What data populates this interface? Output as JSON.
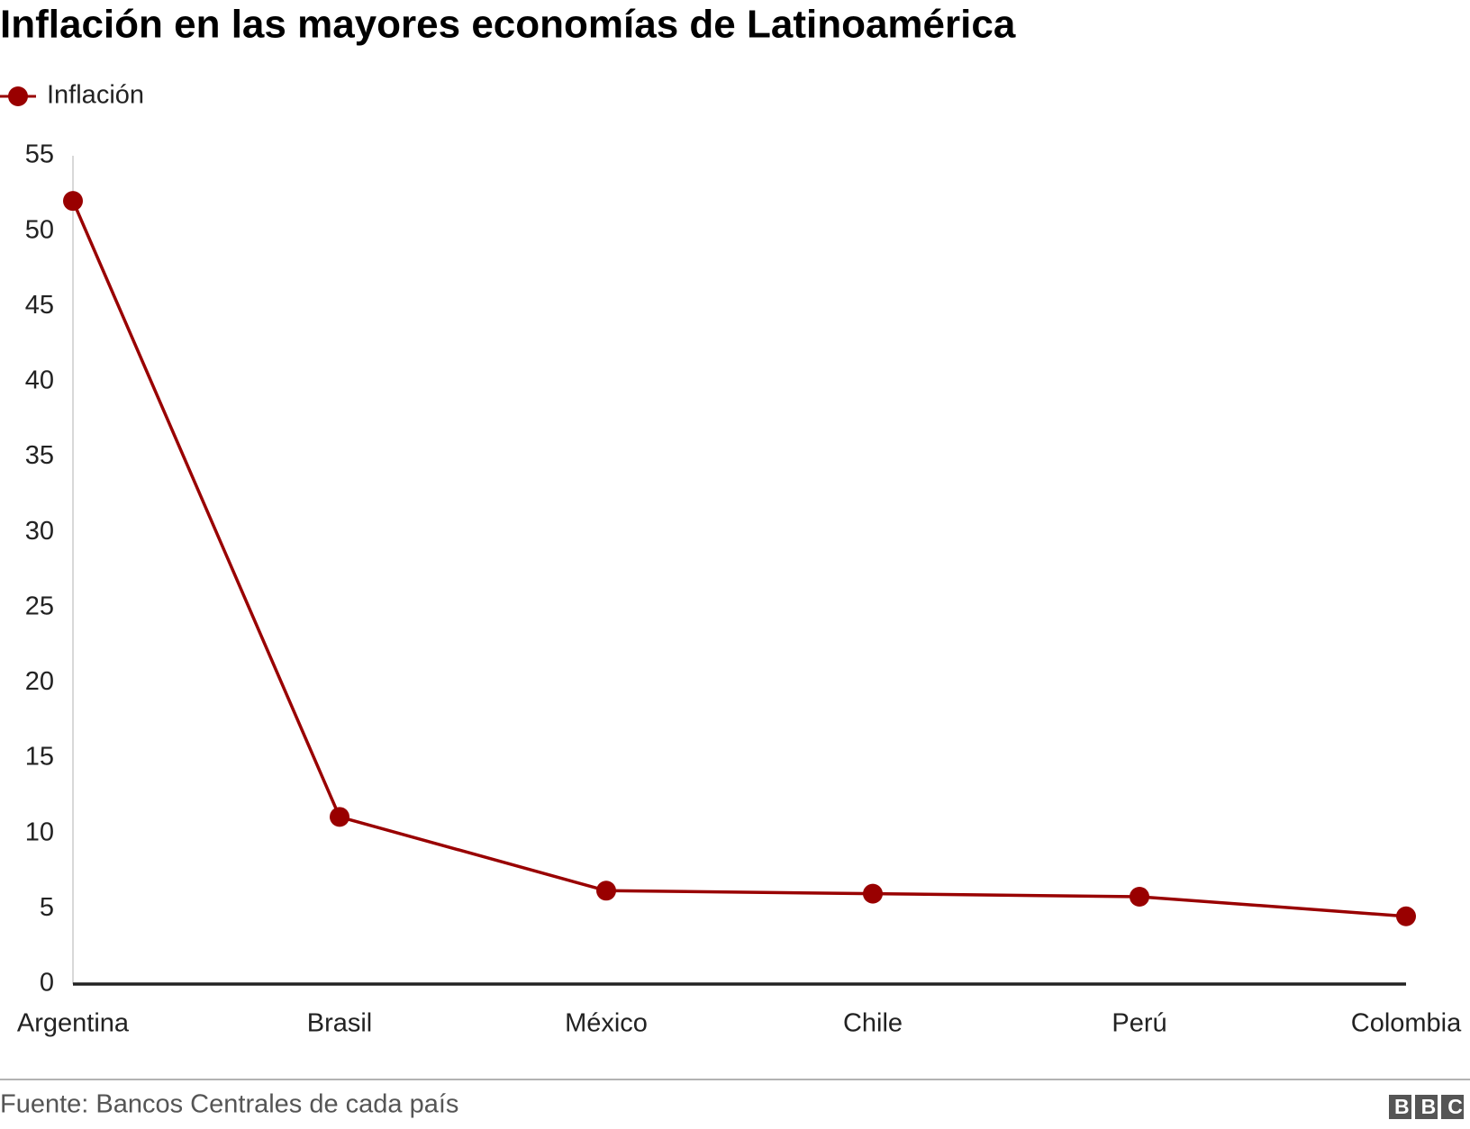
{
  "chart_data": {
    "type": "line",
    "title": "Inflación en las mayores economías de Latinoamérica",
    "categories": [
      "Argentina",
      "Brasil",
      "México",
      "Chile",
      "Perú",
      "Colombia"
    ],
    "series": [
      {
        "name": "Inflación",
        "color": "#990000",
        "values": [
          52.0,
          11.1,
          6.2,
          6.0,
          5.8,
          4.5
        ]
      }
    ],
    "ylim": [
      0,
      55
    ],
    "yticks": [
      0,
      5,
      10,
      15,
      20,
      25,
      30,
      35,
      40,
      45,
      50,
      55
    ],
    "grid": false,
    "legend": "top-left",
    "source": "Fuente: Bancos Centrales de cada país",
    "logo": "BBC"
  }
}
